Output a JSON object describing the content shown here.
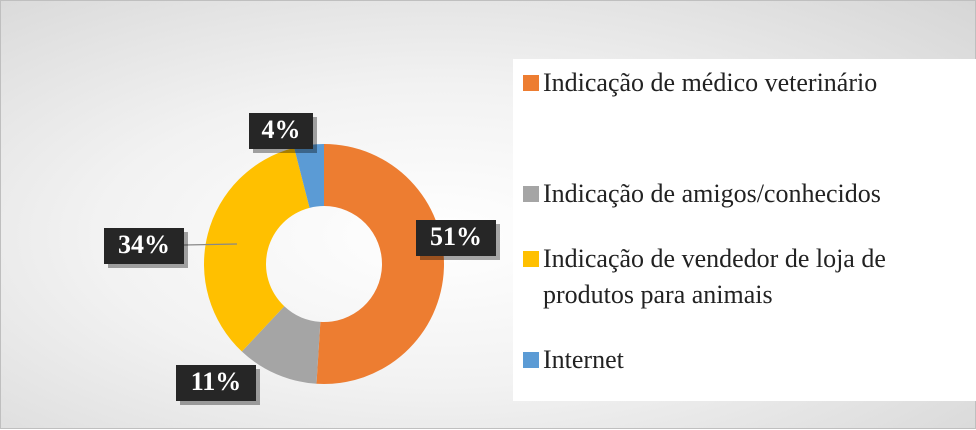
{
  "chart_data": {
    "type": "donut",
    "categories": [
      "Indicação de médico veterinário",
      "Indicação de amigos/conhecidos",
      "Indicação de vendedor de loja de produtos para animais",
      "Internet"
    ],
    "values": [
      51,
      11,
      34,
      4
    ],
    "value_labels": [
      "51%",
      "11%",
      "34%",
      "4%"
    ],
    "colors": [
      "#ed7d31",
      "#a5a5a5",
      "#ffc000",
      "#5b9bd5"
    ],
    "legend": "right"
  }
}
